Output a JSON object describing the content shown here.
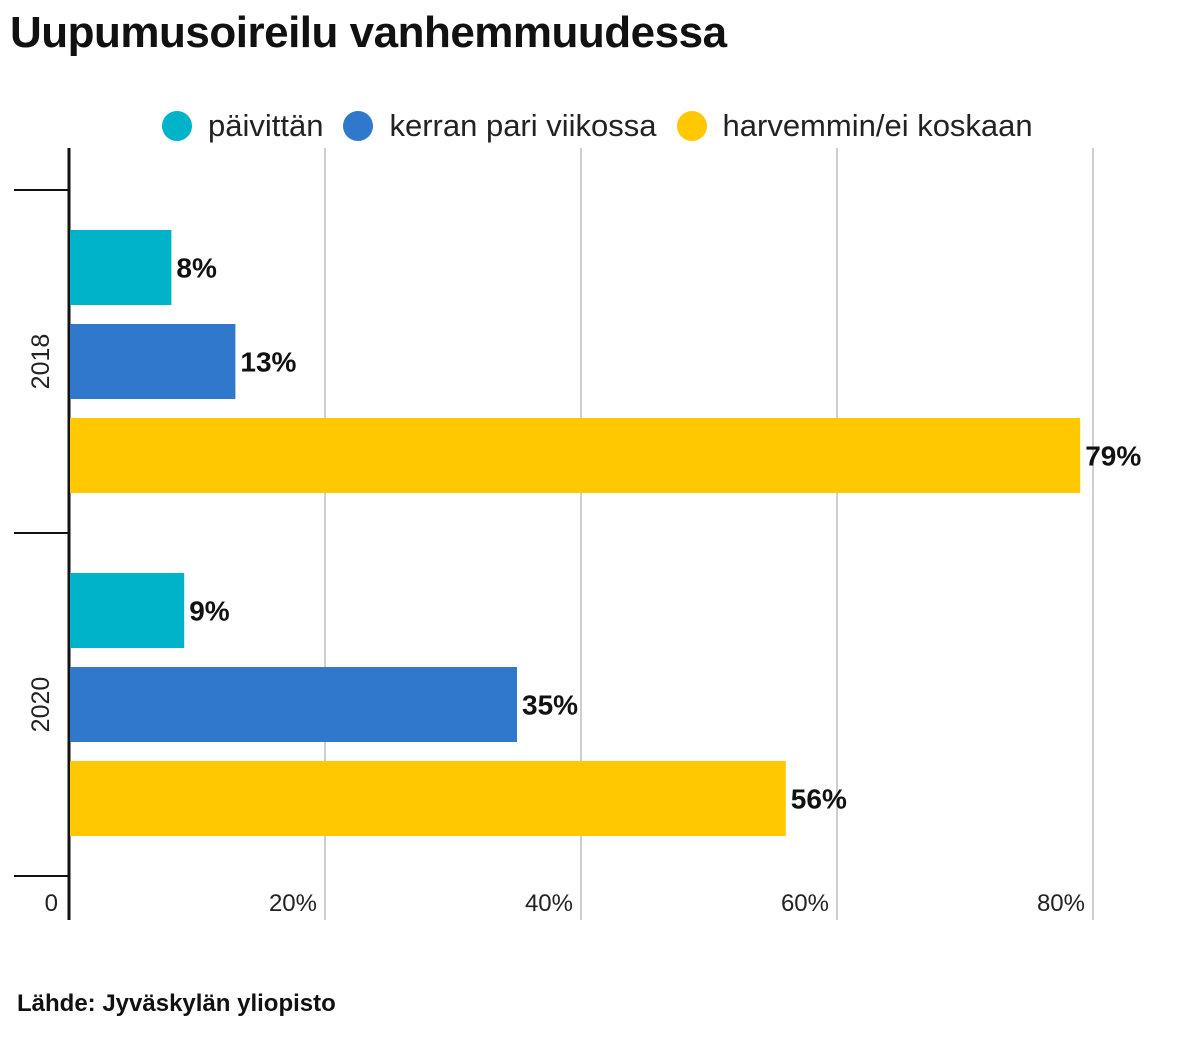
{
  "title": "Uupumusoireilu vanhemmuudessa",
  "source": "Lähde: Jyväskylän yliopisto",
  "colors": {
    "cyan": "#00b3c8",
    "blue": "#2f78cc",
    "yellow": "#ffc800"
  },
  "chart_data": {
    "type": "bar",
    "orientation": "horizontal",
    "categories": [
      "2018",
      "2020"
    ],
    "series": [
      {
        "name": "päivittän",
        "color": "#00b3c8",
        "values": [
          8,
          9
        ],
        "labels": [
          "8%",
          "9%"
        ]
      },
      {
        "name": "kerran pari viikossa",
        "color": "#2f78cc",
        "values": [
          13,
          35
        ],
        "labels": [
          "13%",
          "35%"
        ]
      },
      {
        "name": "harvemmin/ei koskaan",
        "color": "#ffc800",
        "values": [
          79,
          56
        ],
        "labels": [
          "79%",
          "56%"
        ]
      }
    ],
    "xticks": [
      0,
      20,
      40,
      60,
      80
    ],
    "xtick_labels": [
      "0",
      "20%",
      "40%",
      "60%",
      "80%"
    ],
    "xlim": [
      0,
      80
    ],
    "grid": true,
    "legend": "top"
  }
}
